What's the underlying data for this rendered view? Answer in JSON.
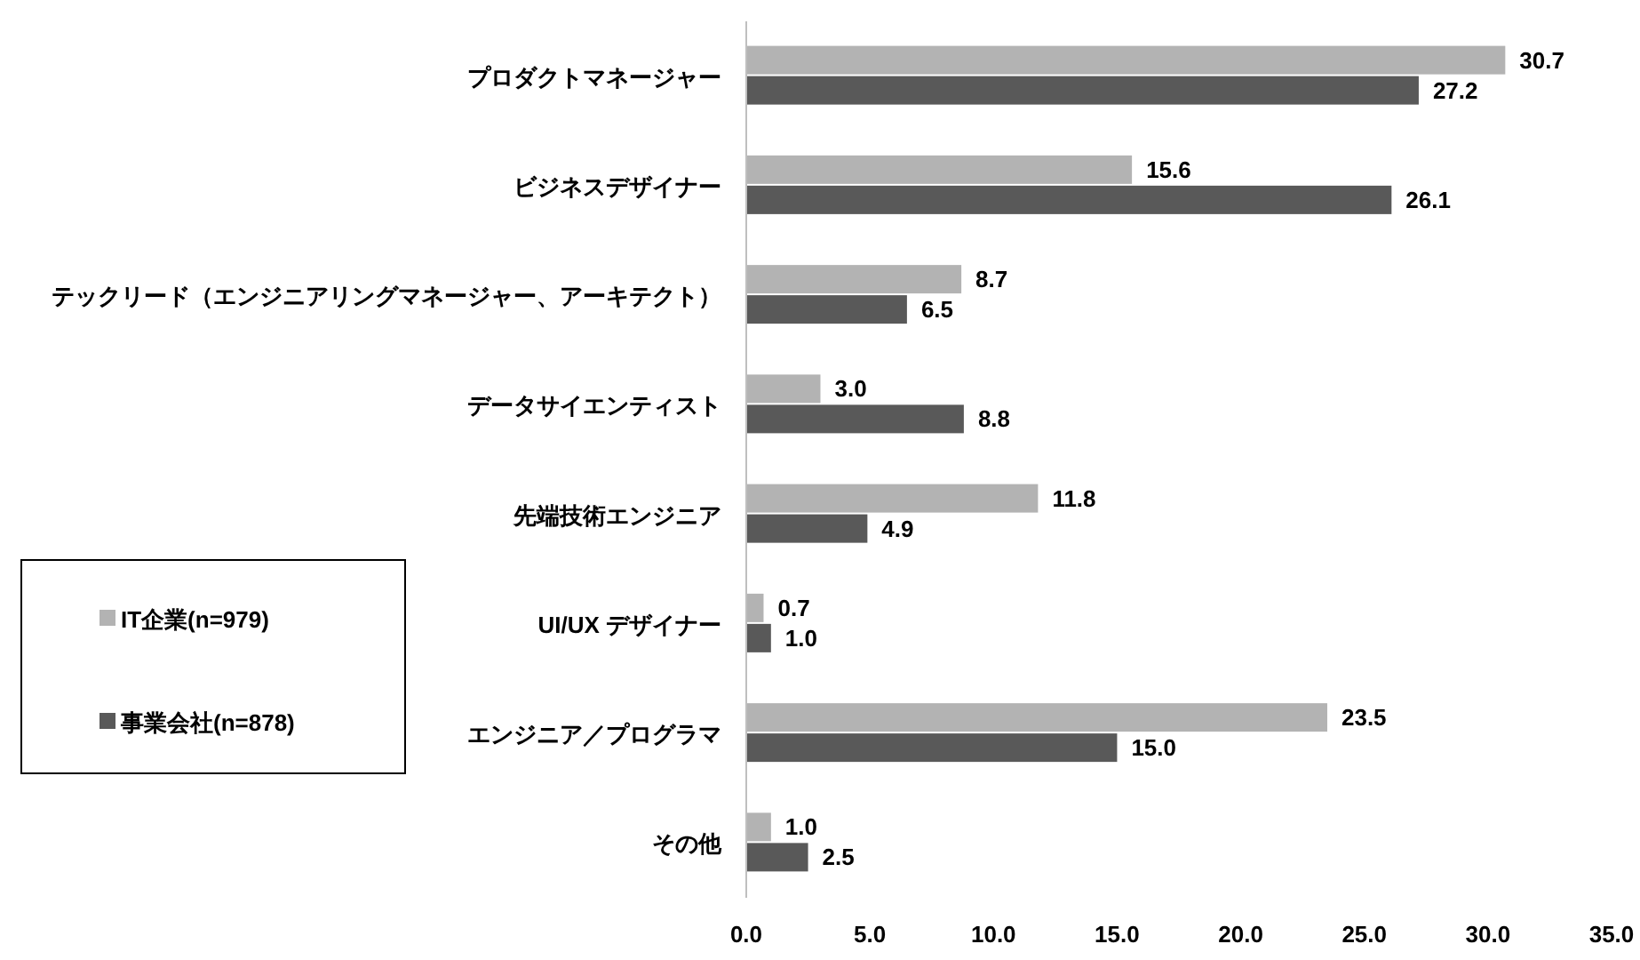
{
  "chart_data": {
    "type": "bar",
    "orientation": "horizontal",
    "categories": [
      "プロダクトマネージャー",
      "ビジネスデザイナー",
      "テックリード（エンジニアリングマネージャー、アーキテクト）",
      "データサイエンティスト",
      "先端技術エンジニア",
      "UI/UX デザイナー",
      "エンジニア／プログラマ",
      "その他"
    ],
    "series": [
      {
        "name": "IT企業(n=979)",
        "color": "#b3b3b3",
        "values": [
          30.7,
          15.6,
          8.7,
          3.0,
          11.8,
          0.7,
          23.5,
          1.0
        ],
        "value_labels": [
          "30.7",
          "15.6",
          "8.7",
          "3.0",
          "11.8",
          "0.7",
          "23.5",
          "1.0"
        ]
      },
      {
        "name": "事業会社(n=878)",
        "color": "#595959",
        "values": [
          27.2,
          26.1,
          6.5,
          8.8,
          4.9,
          1.0,
          15.0,
          2.5
        ],
        "value_labels": [
          "27.2",
          "26.1",
          "6.5",
          "8.8",
          "4.9",
          "1.0",
          "15.0",
          "2.5"
        ]
      }
    ],
    "xlim": [
      0,
      35
    ],
    "xticks": [
      {
        "value": 0,
        "label": "0.0"
      },
      {
        "value": 5,
        "label": "5.0"
      },
      {
        "value": 10,
        "label": "10.0"
      },
      {
        "value": 15,
        "label": "15.0"
      },
      {
        "value": 20,
        "label": "20.0"
      },
      {
        "value": 25,
        "label": "25.0"
      },
      {
        "value": 30,
        "label": "30.0"
      },
      {
        "value": 35,
        "label": "35.0"
      }
    ],
    "legend": "left",
    "grid": false
  }
}
